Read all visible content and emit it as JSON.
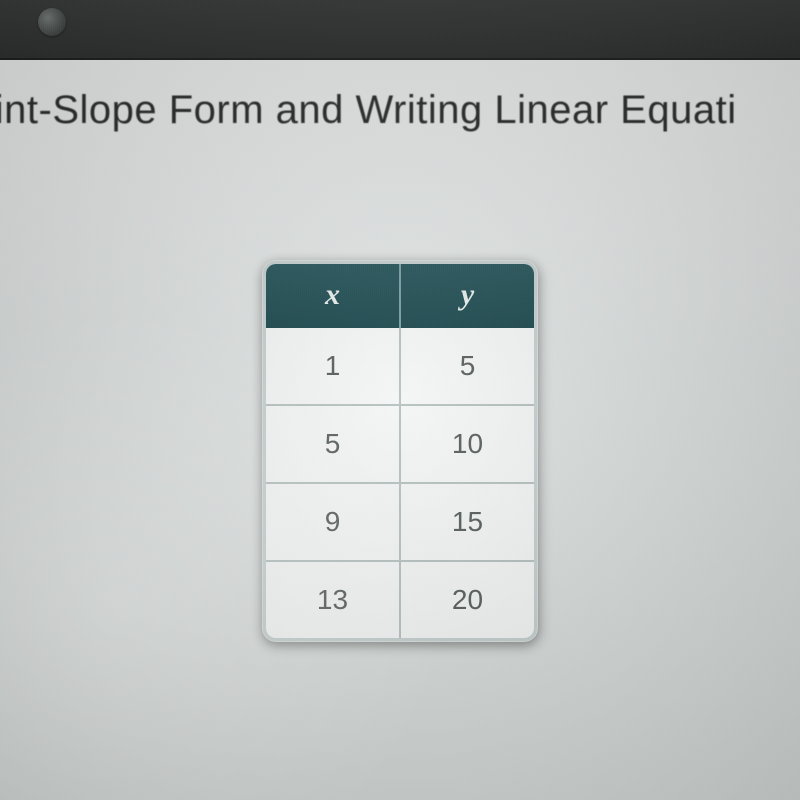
{
  "toolbar": {
    "icon_label": ""
  },
  "page": {
    "title": "oint-Slope Form and Writing Linear Equati"
  },
  "xy_table": {
    "type": "table",
    "columns": [
      "x",
      "y"
    ],
    "rows": [
      [
        "1",
        "5"
      ],
      [
        "5",
        "10"
      ],
      [
        "9",
        "15"
      ],
      [
        "13",
        "20"
      ]
    ],
    "header_bg": "#224e54",
    "header_fg": "#e8eeed",
    "header_fontsize": 30,
    "header_fontstyle": "italic",
    "cell_bg": "#f3f6f5",
    "cell_fg": "#5a615f",
    "cell_fontsize": 28,
    "border_color": "#b7c2c0",
    "wrap_bg": "#c6d0cf",
    "border_radius": 14,
    "col_width_ratio": [
      0.5,
      0.5
    ]
  },
  "panel": {
    "background": "#e2e6e5"
  }
}
